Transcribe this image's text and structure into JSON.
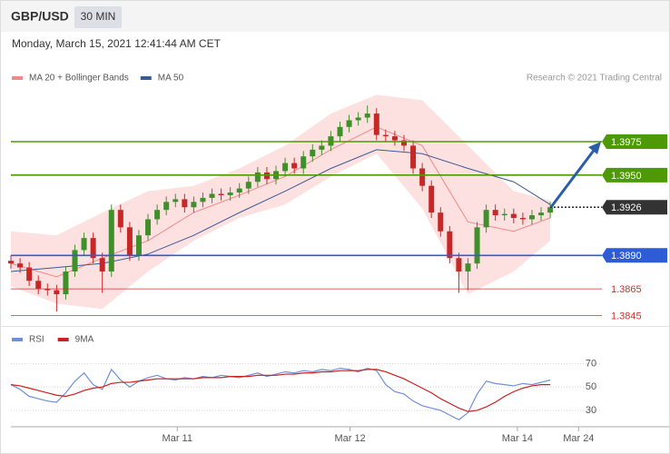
{
  "header": {
    "symbol": "GBP/USD",
    "interval": "30 MIN",
    "timestamp": "Monday, March 15, 2021 12:41:44 AM CET"
  },
  "chart_data": [
    {
      "type": "candlestick",
      "credit": "Research © 2021 Trading Central",
      "xlim": [
        0,
        72
      ],
      "ylim": [
        1.384,
        1.4013
      ],
      "up_color": "#3f8f2a",
      "down_color": "#c62828",
      "open": [
        1.3886,
        1.3884,
        1.3881,
        1.3871,
        1.3865,
        1.3864,
        1.3861,
        1.3878,
        1.3894,
        1.3903,
        1.3888,
        1.3878,
        1.3924,
        1.3911,
        1.389,
        1.3905,
        1.3917,
        1.3924,
        1.393,
        1.3932,
        1.3926,
        1.393,
        1.3933,
        1.3936,
        1.3935,
        1.3937,
        1.394,
        1.3945,
        1.3952,
        1.3947,
        1.3953,
        1.3959,
        1.3955,
        1.3964,
        1.3969,
        1.3972,
        1.3979,
        1.3986,
        1.3991,
        1.3993,
        1.3996,
        1.398,
        1.3979,
        1.3976,
        1.3972,
        1.3955,
        1.3942,
        1.3922,
        1.3908,
        1.3888,
        1.3878,
        1.3884,
        1.3911,
        1.3924,
        1.392,
        1.3921,
        1.3918,
        1.3917,
        1.392,
        1.3922
      ],
      "high": [
        1.389,
        1.3888,
        1.3885,
        1.3875,
        1.3869,
        1.3868,
        1.3882,
        1.3898,
        1.3907,
        1.3907,
        1.3892,
        1.3928,
        1.3928,
        1.3915,
        1.3909,
        1.3921,
        1.3928,
        1.3934,
        1.3936,
        1.3936,
        1.3934,
        1.3937,
        1.394,
        1.394,
        1.3941,
        1.3944,
        1.3949,
        1.3956,
        1.3956,
        1.3957,
        1.3963,
        1.3963,
        1.3968,
        1.3973,
        1.3976,
        1.3983,
        1.399,
        1.3995,
        1.3997,
        1.4002,
        1.4,
        1.3984,
        1.3983,
        1.398,
        1.3976,
        1.3959,
        1.3946,
        1.3926,
        1.3912,
        1.3892,
        1.3888,
        1.3915,
        1.3928,
        1.3928,
        1.3925,
        1.3925,
        1.3922,
        1.3924,
        1.3926,
        1.393
      ],
      "low": [
        1.388,
        1.3877,
        1.3867,
        1.3861,
        1.386,
        1.3848,
        1.3857,
        1.3874,
        1.389,
        1.3884,
        1.3862,
        1.3874,
        1.3907,
        1.3886,
        1.3886,
        1.3901,
        1.3913,
        1.392,
        1.3926,
        1.3922,
        1.3922,
        1.3926,
        1.3929,
        1.3931,
        1.3931,
        1.3933,
        1.3936,
        1.3941,
        1.3943,
        1.3943,
        1.3949,
        1.3951,
        1.3951,
        1.396,
        1.3965,
        1.3968,
        1.3975,
        1.3982,
        1.3987,
        1.3989,
        1.3976,
        1.3975,
        1.3972,
        1.3968,
        1.3951,
        1.3938,
        1.3918,
        1.3904,
        1.3884,
        1.3862,
        1.3864,
        1.388,
        1.3907,
        1.3916,
        1.3916,
        1.3914,
        1.3913,
        1.3913,
        1.3916,
        1.3918
      ],
      "close": [
        1.3884,
        1.3881,
        1.3871,
        1.3865,
        1.3864,
        1.3861,
        1.3878,
        1.3894,
        1.3903,
        1.3888,
        1.3878,
        1.3924,
        1.3911,
        1.389,
        1.3905,
        1.3917,
        1.3924,
        1.393,
        1.3932,
        1.3926,
        1.393,
        1.3933,
        1.3936,
        1.3935,
        1.3937,
        1.394,
        1.3945,
        1.3952,
        1.3947,
        1.3953,
        1.3959,
        1.3955,
        1.3964,
        1.3969,
        1.3972,
        1.3979,
        1.3986,
        1.3991,
        1.3993,
        1.3996,
        1.398,
        1.3979,
        1.3976,
        1.3972,
        1.3955,
        1.3942,
        1.3922,
        1.3908,
        1.3888,
        1.3878,
        1.3884,
        1.3911,
        1.3924,
        1.392,
        1.3921,
        1.3918,
        1.3917,
        1.392,
        1.3922,
        1.3926
      ],
      "overlays": [
        {
          "name": "MA 20 + Bollinger Bands",
          "color": "#ef8a8a",
          "band_color": "#fde1e1",
          "x": [
            0,
            5,
            10,
            15,
            20,
            25,
            30,
            35,
            40,
            45,
            50,
            55,
            59
          ],
          "values": [
            1.3884,
            1.3874,
            1.3888,
            1.3901,
            1.3922,
            1.3935,
            1.3949,
            1.3969,
            1.3986,
            1.3972,
            1.3915,
            1.3908,
            1.3918
          ],
          "upper": [
            1.3908,
            1.3905,
            1.3922,
            1.3938,
            1.3942,
            1.3955,
            1.3972,
            1.3996,
            1.401,
            1.4006,
            1.3972,
            1.3938,
            1.3931
          ],
          "lower": [
            1.3867,
            1.3854,
            1.385,
            1.3878,
            1.3901,
            1.3918,
            1.3928,
            1.3949,
            1.3966,
            1.3925,
            1.3861,
            1.3878,
            1.3901
          ]
        },
        {
          "name": "MA 50",
          "color": "#3a5a96",
          "x": [
            0,
            5,
            10,
            15,
            20,
            25,
            30,
            35,
            40,
            45,
            50,
            55,
            59
          ],
          "values": [
            1.3878,
            1.3881,
            1.3884,
            1.3891,
            1.3905,
            1.3922,
            1.3938,
            1.3955,
            1.3969,
            1.3966,
            1.3955,
            1.3945,
            1.3928
          ]
        }
      ],
      "levels": [
        {
          "value": 1.3975,
          "label": "1.3975",
          "color": "#4e9a06",
          "boxed": true,
          "dotted": false
        },
        {
          "value": 1.395,
          "label": "1.3950",
          "color": "#4e9a06",
          "boxed": true,
          "dotted": false
        },
        {
          "value": 1.3926,
          "label": "1.3926",
          "color": "#333333",
          "boxed": true,
          "dotted": true
        },
        {
          "value": 1.389,
          "label": "1.3890",
          "color": "#2e5bd6",
          "boxed": true,
          "dotted": false
        },
        {
          "value": 1.3865,
          "label": "1.3865",
          "color": "#d0302f",
          "boxed": false,
          "dotted": false
        },
        {
          "value": 1.3845,
          "label": "1.3845",
          "color": "#d0302f",
          "boxed": false,
          "dotted": false
        }
      ]
    },
    {
      "type": "line",
      "xlim": [
        0,
        72
      ],
      "ylim": [
        16,
        82
      ],
      "yticks": [
        30,
        50,
        70
      ],
      "xticks": [
        {
          "value": 18.2,
          "label": "Mar 11"
        },
        {
          "value": 37.1,
          "label": "Mar 12"
        },
        {
          "value": 55.4,
          "label": "Mar 14"
        },
        {
          "value": 62.1,
          "label": "Mar 24"
        }
      ],
      "series": [
        {
          "name": "RSI",
          "color": "#6f8fd8",
          "values": [
            52,
            48,
            42,
            40,
            38,
            37,
            45,
            55,
            62,
            52,
            48,
            65,
            56,
            50,
            55,
            58,
            60,
            57,
            56,
            58,
            57,
            59,
            58,
            60,
            59,
            58,
            60,
            62,
            59,
            61,
            63,
            62,
            64,
            63,
            65,
            64,
            66,
            65,
            63,
            66,
            64,
            52,
            46,
            44,
            38,
            34,
            32,
            30,
            26,
            22,
            28,
            44,
            55,
            53,
            52,
            51,
            53,
            52,
            54,
            56
          ]
        },
        {
          "name": "9MA",
          "color": "#cc1f1f",
          "values": [
            52,
            51,
            49,
            47,
            45,
            43,
            42,
            44,
            47,
            49,
            50,
            53,
            54,
            54,
            55,
            56,
            57,
            57,
            57,
            57,
            57,
            58,
            58,
            58,
            59,
            59,
            59,
            60,
            60,
            60,
            61,
            61,
            62,
            62,
            63,
            63,
            64,
            64,
            64,
            65,
            65,
            63,
            60,
            57,
            53,
            49,
            45,
            40,
            36,
            32,
            29,
            30,
            33,
            37,
            42,
            46,
            49,
            51,
            52,
            52
          ]
        }
      ]
    }
  ]
}
